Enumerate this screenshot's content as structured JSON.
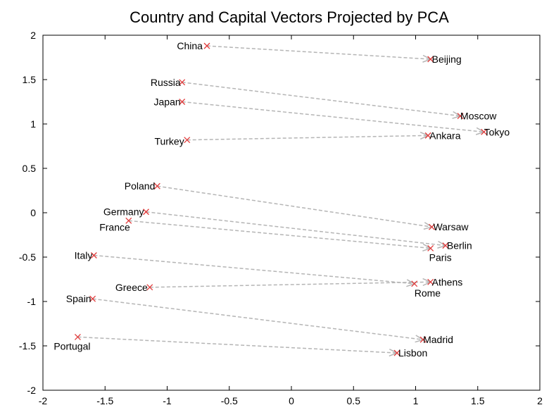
{
  "chart_data": {
    "type": "scatter",
    "title": "Country and Capital Vectors Projected by PCA",
    "xlabel": "",
    "ylabel": "",
    "xlim": [
      -2,
      2
    ],
    "ylim": [
      -2,
      2
    ],
    "xticks": [
      "-2",
      "-1.5",
      "-1",
      "-0.5",
      "0",
      "0.5",
      "1",
      "1.5",
      "2"
    ],
    "yticks": [
      "2",
      "1.5",
      "1",
      "0.5",
      "0",
      "-0.5",
      "-1",
      "-1.5",
      "-2"
    ],
    "xtick_values": [
      -2,
      -1.5,
      -1,
      -0.5,
      0,
      0.5,
      1,
      1.5,
      2
    ],
    "ytick_values": [
      2,
      1.5,
      1,
      0.5,
      0,
      -0.5,
      -1,
      -1.5,
      -2
    ],
    "grid": false,
    "marker_color": "#e23b3b",
    "arrow_color": "#b5b5b5",
    "pairs": [
      {
        "country": "China",
        "country_xy": [
          -0.68,
          1.88
        ],
        "capital": "Beijing",
        "capital_xy": [
          1.12,
          1.73
        ]
      },
      {
        "country": "Russia",
        "country_xy": [
          -0.88,
          1.47
        ],
        "capital": "Moscow",
        "capital_xy": [
          1.36,
          1.09
        ]
      },
      {
        "country": "Japan",
        "country_xy": [
          -0.88,
          1.25
        ],
        "capital": "Tokyo",
        "capital_xy": [
          1.55,
          0.91
        ]
      },
      {
        "country": "Turkey",
        "country_xy": [
          -0.84,
          0.82
        ],
        "capital": "Ankara",
        "capital_xy": [
          1.1,
          0.87
        ]
      },
      {
        "country": "Poland",
        "country_xy": [
          -1.08,
          0.3
        ],
        "capital": "Warsaw",
        "capital_xy": [
          1.13,
          -0.16
        ]
      },
      {
        "country": "Germany",
        "country_xy": [
          -1.17,
          0.01
        ],
        "capital": "Berlin",
        "capital_xy": [
          1.24,
          -0.37
        ]
      },
      {
        "country": "France",
        "country_xy": [
          -1.31,
          -0.09
        ],
        "capital": "Paris",
        "capital_xy": [
          1.12,
          -0.4
        ]
      },
      {
        "country": "Italy",
        "country_xy": [
          -1.59,
          -0.48
        ],
        "capital": "Rome",
        "capital_xy": [
          0.99,
          -0.8
        ]
      },
      {
        "country": "Greece",
        "country_xy": [
          -1.14,
          -0.84
        ],
        "capital": "Athens",
        "capital_xy": [
          1.12,
          -0.78
        ]
      },
      {
        "country": "Spain",
        "country_xy": [
          -1.6,
          -0.97
        ],
        "capital": "Madrid",
        "capital_xy": [
          1.06,
          -1.43
        ]
      },
      {
        "country": "Portugal",
        "country_xy": [
          -1.72,
          -1.4
        ],
        "capital": "Lisbon",
        "capital_xy": [
          0.85,
          -1.58
        ]
      }
    ]
  }
}
